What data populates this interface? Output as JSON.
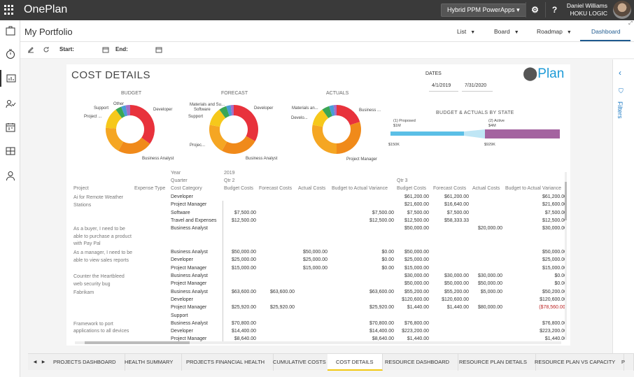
{
  "app": {
    "title": "OnePlan",
    "environment": "Hybrid PPM PowerApps",
    "settings_icon": "gear-icon",
    "help_label": "?",
    "user_name": "Daniel Williams",
    "user_org": "HOKU LOGIC"
  },
  "header": {
    "page_title": "My Portfolio",
    "views": [
      "List",
      "Board",
      "Roadmap",
      "Dashboard"
    ],
    "active_view": "Dashboard"
  },
  "toolbar": {
    "start_label": "Start:",
    "end_label": "End:"
  },
  "report": {
    "title": "COST DETAILS",
    "logo": "Plan",
    "dates_label": "DATES",
    "date_start": "4/1/2019",
    "date_end": "7/31/2020",
    "state_title": "BUDGET & ACTUALS BY STATE",
    "state_proposed": "(1) Proposed",
    "state_proposed_val": "$1M",
    "state_active": "(2) Active",
    "state_active_val": "$4M",
    "state_left_val": "$150K",
    "state_right_val": "$929K",
    "donuts": [
      {
        "title": "BUDGET",
        "labels": [
          "Other",
          "Support",
          "Project ...",
          "Developer",
          "Business Analyst"
        ],
        "slices": [
          {
            "v": 35,
            "c": "#e8323c"
          },
          {
            "v": 23,
            "c": "#f08a1a"
          },
          {
            "v": 18,
            "c": "#f5a623"
          },
          {
            "v": 14,
            "c": "#f6c81b"
          },
          {
            "v": 4,
            "c": "#3aa655"
          },
          {
            "v": 3,
            "c": "#4a9bd8"
          },
          {
            "v": 3,
            "c": "#a56fc7"
          }
        ]
      },
      {
        "title": "FORECAST",
        "labels": [
          "Materials and Su...",
          "Software",
          "Support",
          "Developer",
          "Projec...",
          "Business Analyst"
        ],
        "slices": [
          {
            "v": 33,
            "c": "#e8323c"
          },
          {
            "v": 25,
            "c": "#f08a1a"
          },
          {
            "v": 20,
            "c": "#f5a623"
          },
          {
            "v": 12,
            "c": "#f6c81b"
          },
          {
            "v": 5,
            "c": "#3aa655"
          },
          {
            "v": 3,
            "c": "#4a9bd8"
          },
          {
            "v": 2,
            "c": "#a56fc7"
          }
        ]
      },
      {
        "title": "ACTUALS",
        "labels": [
          "Materials an...",
          "Develo...",
          "Business ...",
          "Project Manager"
        ],
        "slices": [
          {
            "v": 20,
            "c": "#e8323c"
          },
          {
            "v": 30,
            "c": "#f08a1a"
          },
          {
            "v": 28,
            "c": "#f5a623"
          },
          {
            "v": 12,
            "c": "#f6c81b"
          },
          {
            "v": 5,
            "c": "#3aa655"
          },
          {
            "v": 3,
            "c": "#4a9bd8"
          },
          {
            "v": 2,
            "c": "#a56fc7"
          }
        ]
      }
    ]
  },
  "table": {
    "year_label": "Year",
    "year_value": "2019",
    "quarter_label": "Quarter",
    "q2": "Qtr 2",
    "q3": "Qtr 3",
    "columns": [
      "Project",
      "Expense Type",
      "Cost Category",
      "Budget Costs",
      "Forecast Costs",
      "Actual Costs",
      "Budget to Actual Variance",
      "Budget Costs",
      "Forecast Costs",
      "Actual Costs",
      "Budget to Actual Variance"
    ],
    "projects": [
      {
        "name": "Ai for Remote Weather Stations",
        "row": 0
      },
      {
        "name": "As a buyer, I need to be able to purchase a product with Pay Pal",
        "row": 4
      },
      {
        "name": "As a manager, I need to be able to view sales reports",
        "row": 7
      },
      {
        "name": "Counter the Heartbleed web security bug",
        "row": 10
      },
      {
        "name": "Fabrikam",
        "row": 12
      },
      {
        "name": "Framework to port applications to all devices",
        "row": 16
      }
    ],
    "rows": [
      [
        "Developer",
        "",
        "",
        "",
        "",
        "$61,200.00",
        "$61,200.00",
        "",
        "$61,200.00"
      ],
      [
        "Project Manager",
        "",
        "",
        "",
        "",
        "$21,600.00",
        "$16,640.00",
        "",
        "$21,600.00"
      ],
      [
        "Software",
        "$7,500.00",
        "",
        "",
        "$7,500.00",
        "$7,500.00",
        "$7,500.00",
        "",
        "$7,500.00"
      ],
      [
        "Travel and Expenses",
        "$12,500.00",
        "",
        "",
        "$12,500.00",
        "$12,500.00",
        "$58,333.33",
        "",
        "$12,500.00"
      ],
      [
        "Business Analyst",
        "",
        "",
        "",
        "",
        "$50,000.00",
        "",
        "$20,000.00",
        "$30,000.00"
      ],
      [
        "",
        "",
        "",
        "",
        "",
        "",
        "",
        "",
        ""
      ],
      [
        "",
        "",
        "",
        "",
        "",
        "",
        "",
        "",
        ""
      ],
      [
        "Business Analyst",
        "$50,000.00",
        "",
        "$50,000.00",
        "$0.00",
        "$50,000.00",
        "",
        "",
        "$50,000.00"
      ],
      [
        "Developer",
        "$25,000.00",
        "",
        "$25,000.00",
        "$0.00",
        "$25,000.00",
        "",
        "",
        "$25,000.00"
      ],
      [
        "Project Manager",
        "$15,000.00",
        "",
        "$15,000.00",
        "$0.00",
        "$15,000.00",
        "",
        "",
        "$15,000.00"
      ],
      [
        "Business Analyst",
        "",
        "",
        "",
        "",
        "$30,000.00",
        "$30,000.00",
        "$30,000.00",
        "$0.00"
      ],
      [
        "Project Manager",
        "",
        "",
        "",
        "",
        "$50,000.00",
        "$50,000.00",
        "$50,000.00",
        "$0.00"
      ],
      [
        "Business Analyst",
        "$63,600.00",
        "$63,600.00",
        "",
        "$63,600.00",
        "$55,200.00",
        "$55,200.00",
        "$5,000.00",
        "$50,200.00"
      ],
      [
        "Developer",
        "",
        "",
        "",
        "",
        "$120,600.00",
        "$120,600.00",
        "",
        "$120,600.00"
      ],
      [
        "Project Manager",
        "$25,920.00",
        "$25,920.00",
        "",
        "$25,920.00",
        "$1,440.00",
        "$1,440.00",
        "$80,000.00",
        "($78,560.00)"
      ],
      [
        "Support",
        "",
        "",
        "",
        "",
        "",
        "",
        "",
        ""
      ],
      [
        "Business Analyst",
        "$70,800.00",
        "",
        "",
        "$70,800.00",
        "$76,800.00",
        "",
        "",
        "$76,800.00"
      ],
      [
        "Developer",
        "$14,400.00",
        "",
        "",
        "$14,400.00",
        "$223,200.00",
        "",
        "",
        "$223,200.00"
      ],
      [
        "Project Manager",
        "$8,640.00",
        "",
        "",
        "$8,640.00",
        "$1,440.00",
        "",
        "",
        "$1,440.00"
      ]
    ]
  },
  "tabs": [
    "PROJECTS DASHBOARD",
    "HEALTH SUMMARY",
    "PROJECTS FINANCIAL HEALTH",
    "CUMULATIVE COSTS",
    "COST DETAILS",
    "RESOURCE DASHBOARD",
    "RESOURCE PLAN DETAILS",
    "RESOURCE PLAN VS CAPACITY",
    "P"
  ],
  "active_tab": "COST DETAILS",
  "filters_label": "Filters"
}
